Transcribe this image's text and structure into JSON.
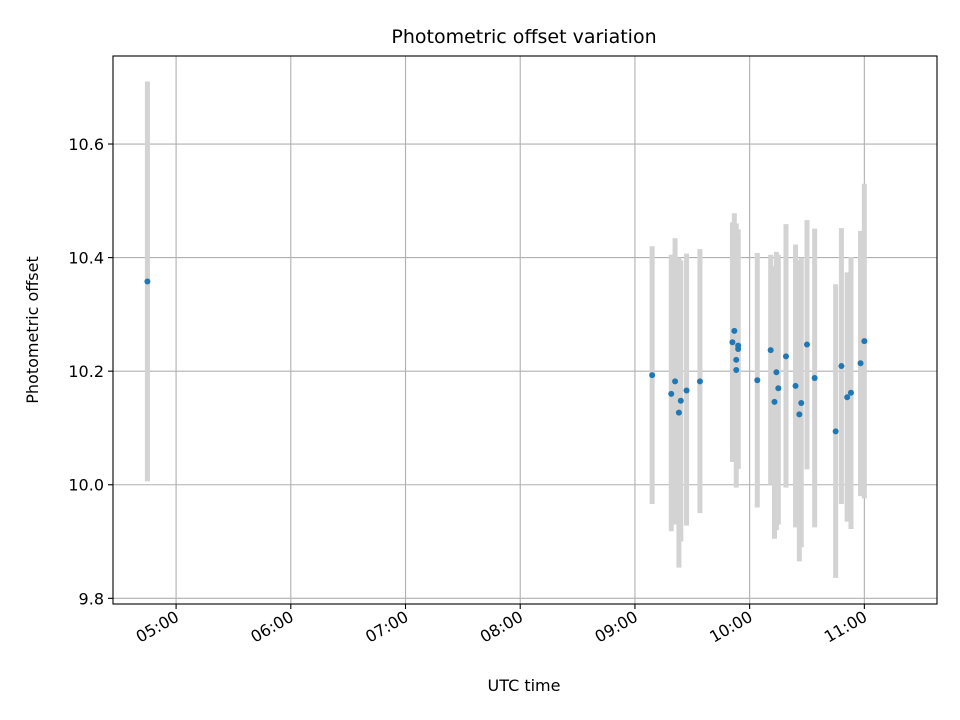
{
  "chart_data": {
    "type": "scatter",
    "title": "Photometric offset variation",
    "xlabel": "UTC time",
    "ylabel": "Photometric offset",
    "x_unit": "time",
    "xlim": [
      "04:27",
      "11:38"
    ],
    "ylim": [
      9.79,
      10.755
    ],
    "x_ticks": [
      "05:00",
      "06:00",
      "07:00",
      "08:00",
      "09:00",
      "10:00",
      "11:00"
    ],
    "y_ticks": [
      9.8,
      10.0,
      10.2,
      10.4,
      10.6
    ],
    "y_tick_labels": [
      "9.8",
      "10.0",
      "10.2",
      "10.4",
      "10.6"
    ],
    "grid": true,
    "colors": {
      "point": "#1f77b4",
      "errorbar": "#d3d3d3",
      "grid": "#b0b0b0"
    },
    "series": [
      {
        "points": [
          {
            "x": "04:45",
            "y": 10.358,
            "ylow": 10.006,
            "yhigh": 10.71
          },
          {
            "x": "09:09",
            "y": 10.193,
            "ylow": 9.966,
            "yhigh": 10.42
          },
          {
            "x": "09:19",
            "y": 10.16,
            "ylow": 9.918,
            "yhigh": 10.405
          },
          {
            "x": "09:21",
            "y": 10.182,
            "ylow": 9.93,
            "yhigh": 10.434
          },
          {
            "x": "09:23",
            "y": 10.127,
            "ylow": 9.854,
            "yhigh": 10.4
          },
          {
            "x": "09:24",
            "y": 10.148,
            "ylow": 9.9,
            "yhigh": 10.395
          },
          {
            "x": "09:27",
            "y": 10.166,
            "ylow": 9.928,
            "yhigh": 10.407
          },
          {
            "x": "09:34",
            "y": 10.182,
            "ylow": 9.95,
            "yhigh": 10.415
          },
          {
            "x": "09:51",
            "y": 10.251,
            "ylow": 10.04,
            "yhigh": 10.462
          },
          {
            "x": "09:52",
            "y": 10.271,
            "ylow": 10.063,
            "yhigh": 10.478
          },
          {
            "x": "09:53",
            "y": 10.22,
            "ylow": 9.995,
            "yhigh": 10.445
          },
          {
            "x": "09:53",
            "y": 10.202,
            "ylow": 10.04,
            "yhigh": 10.46
          },
          {
            "x": "09:54",
            "y": 10.245,
            "ylow": 10.028,
            "yhigh": 10.45
          },
          {
            "x": "09:54",
            "y": 10.239,
            "ylow": 10.03,
            "yhigh": 10.44
          },
          {
            "x": "10:04",
            "y": 10.184,
            "ylow": 9.96,
            "yhigh": 10.408
          },
          {
            "x": "10:11",
            "y": 10.237,
            "ylow": 10.0,
            "yhigh": 10.405
          },
          {
            "x": "10:13",
            "y": 10.146,
            "ylow": 9.905,
            "yhigh": 10.385
          },
          {
            "x": "10:14",
            "y": 10.198,
            "ylow": 9.92,
            "yhigh": 10.41
          },
          {
            "x": "10:15",
            "y": 10.17,
            "ylow": 9.93,
            "yhigh": 10.405
          },
          {
            "x": "10:19",
            "y": 10.226,
            "ylow": 9.995,
            "yhigh": 10.459
          },
          {
            "x": "10:24",
            "y": 10.174,
            "ylow": 9.925,
            "yhigh": 10.423
          },
          {
            "x": "10:26",
            "y": 10.124,
            "ylow": 9.865,
            "yhigh": 10.395
          },
          {
            "x": "10:27",
            "y": 10.144,
            "ylow": 9.89,
            "yhigh": 10.4
          },
          {
            "x": "10:30",
            "y": 10.247,
            "ylow": 10.027,
            "yhigh": 10.466
          },
          {
            "x": "10:34",
            "y": 10.188,
            "ylow": 9.925,
            "yhigh": 10.451
          },
          {
            "x": "10:45",
            "y": 10.094,
            "ylow": 9.836,
            "yhigh": 10.353
          },
          {
            "x": "10:48",
            "y": 10.209,
            "ylow": 9.966,
            "yhigh": 10.452
          },
          {
            "x": "10:51",
            "y": 10.154,
            "ylow": 9.935,
            "yhigh": 10.374
          },
          {
            "x": "10:53",
            "y": 10.162,
            "ylow": 9.922,
            "yhigh": 10.401
          },
          {
            "x": "10:58",
            "y": 10.214,
            "ylow": 9.98,
            "yhigh": 10.447
          },
          {
            "x": "11:00",
            "y": 10.253,
            "ylow": 9.976,
            "yhigh": 10.53
          }
        ]
      }
    ]
  }
}
